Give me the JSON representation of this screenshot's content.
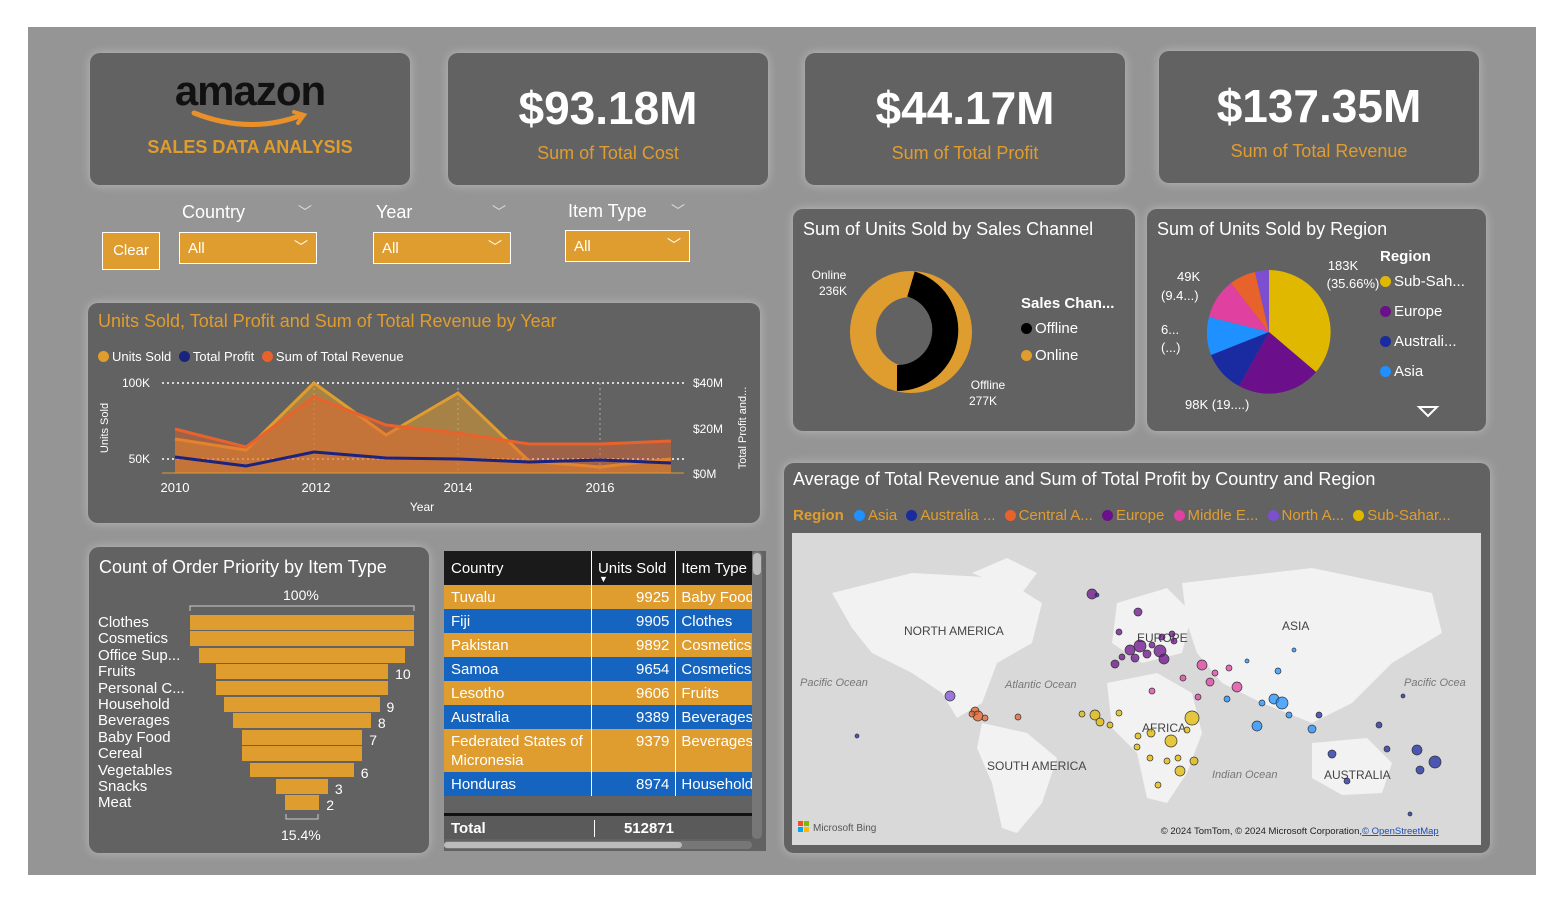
{
  "brand": {
    "logo_text": "amazon",
    "subtitle": "SALES DATA ANALYSIS"
  },
  "kpis": [
    {
      "value": "$93.18M",
      "label": "Sum of Total Cost"
    },
    {
      "value": "$44.17M",
      "label": "Sum of Total Profit"
    },
    {
      "value": "$137.35M",
      "label": "Sum of Total Revenue"
    }
  ],
  "filters": {
    "clear_label": "Clear",
    "country": {
      "title": "Country",
      "value": "All"
    },
    "year": {
      "title": "Year",
      "value": "All"
    },
    "item_type": {
      "title": "Item Type",
      "value": "All"
    }
  },
  "line_chart": {
    "title": "Units Sold, Total Profit and Sum of Total Revenue by Year",
    "legend": [
      "Units Sold",
      "Total Profit",
      "Sum of Total Revenue"
    ],
    "y_left_label": "Units Sold",
    "y_right_label": "Total Profit and...",
    "x_label": "Year",
    "y_left_ticks": [
      "100K",
      "50K"
    ],
    "y_right_ticks": [
      "$40M",
      "$20M",
      "$0M"
    ],
    "x_ticks": [
      "2010",
      "2012",
      "2014",
      "2016"
    ]
  },
  "donut": {
    "title": "Sum of Units Sold by Sales Channel",
    "legend_title": "Sales Chan...",
    "segments": [
      {
        "label": "Offline",
        "value": "277K",
        "color": "#000000"
      },
      {
        "label": "Online",
        "value": "236K",
        "color": "#e09d2f"
      }
    ]
  },
  "pie": {
    "title": "Sum of Units Sold by Region",
    "legend_title": "Region",
    "legend": [
      {
        "label": "Sub-Sah...",
        "color": "#e0b800"
      },
      {
        "label": "Europe",
        "color": "#6b0f8a"
      },
      {
        "label": "Australi...",
        "color": "#1a2aa0"
      },
      {
        "label": "Asia",
        "color": "#1e90ff"
      }
    ],
    "labels": {
      "top_right_value": "183K",
      "top_right_pct": "(35.66%)",
      "top_left_value": "49K",
      "top_left_pct": "(9.4...)",
      "left_value": "6...",
      "left_pct": "(...)",
      "bottom": "98K (19....)"
    }
  },
  "funnel": {
    "title": "Count of Order Priority by Item Type",
    "top_pct": "100%",
    "bottom_pct": "15.4%",
    "items": [
      {
        "label": "Clothes",
        "value": 13,
        "shown": ""
      },
      {
        "label": "Cosmetics",
        "value": 13,
        "shown": ""
      },
      {
        "label": "Office Sup...",
        "value": 12,
        "shown": ""
      },
      {
        "label": "Fruits",
        "value": 10,
        "shown": "10"
      },
      {
        "label": "Personal C...",
        "value": 10,
        "shown": ""
      },
      {
        "label": "Household",
        "value": 9,
        "shown": "9"
      },
      {
        "label": "Beverages",
        "value": 8,
        "shown": "8"
      },
      {
        "label": "Baby Food",
        "value": 7,
        "shown": "7"
      },
      {
        "label": "Cereal",
        "value": 7,
        "shown": ""
      },
      {
        "label": "Vegetables",
        "value": 6,
        "shown": "6"
      },
      {
        "label": "Snacks",
        "value": 3,
        "shown": "3"
      },
      {
        "label": "Meat",
        "value": 2,
        "shown": "2"
      }
    ]
  },
  "table": {
    "headers": [
      "Country",
      "Units Sold",
      "Item Type"
    ],
    "rows": [
      [
        "Tuvalu",
        "9925",
        "Baby Food"
      ],
      [
        "Fiji",
        "9905",
        "Clothes"
      ],
      [
        "Pakistan",
        "9892",
        "Cosmetics"
      ],
      [
        "Samoa",
        "9654",
        "Cosmetics"
      ],
      [
        "Lesotho",
        "9606",
        "Fruits"
      ],
      [
        "Australia",
        "9389",
        "Beverages"
      ],
      [
        "Federated States of Micronesia",
        "9379",
        "Beverages"
      ],
      [
        "Honduras",
        "8974",
        "Household"
      ]
    ],
    "total_label": "Total",
    "total_value": "512871"
  },
  "map": {
    "title": "Average of Total Revenue and Sum of Total Profit by Country and Region",
    "legend_title": "Region",
    "legend": [
      {
        "label": "Asia",
        "color": "#1e90ff"
      },
      {
        "label": "Australia ...",
        "color": "#1a2aa0"
      },
      {
        "label": "Central A...",
        "color": "#e8632b"
      },
      {
        "label": "Europe",
        "color": "#6b0f8a"
      },
      {
        "label": "Middle E...",
        "color": "#e040a0"
      },
      {
        "label": "North A...",
        "color": "#7b4fd0"
      },
      {
        "label": "Sub-Sahar...",
        "color": "#e0b800"
      }
    ],
    "place_labels": [
      "NORTH AMERICA",
      "EUROPE",
      "ASIA",
      "AFRICA",
      "SOUTH AMERICA",
      "AUSTRALIA",
      "Atlantic Ocean",
      "Pacific Ocean",
      "Pacific Ocea",
      "Indian Ocean"
    ],
    "brand": "Microsoft Bing",
    "copyright": "© 2024 TomTom, © 2024 Microsoft Corporation, ",
    "copyright_link": "© OpenStreetMap"
  },
  "colors": {
    "accent": "#e09d2f",
    "panel": "#626262",
    "background": "#959595",
    "profit": "#1a237e",
    "revenue": "#e8632b"
  }
}
